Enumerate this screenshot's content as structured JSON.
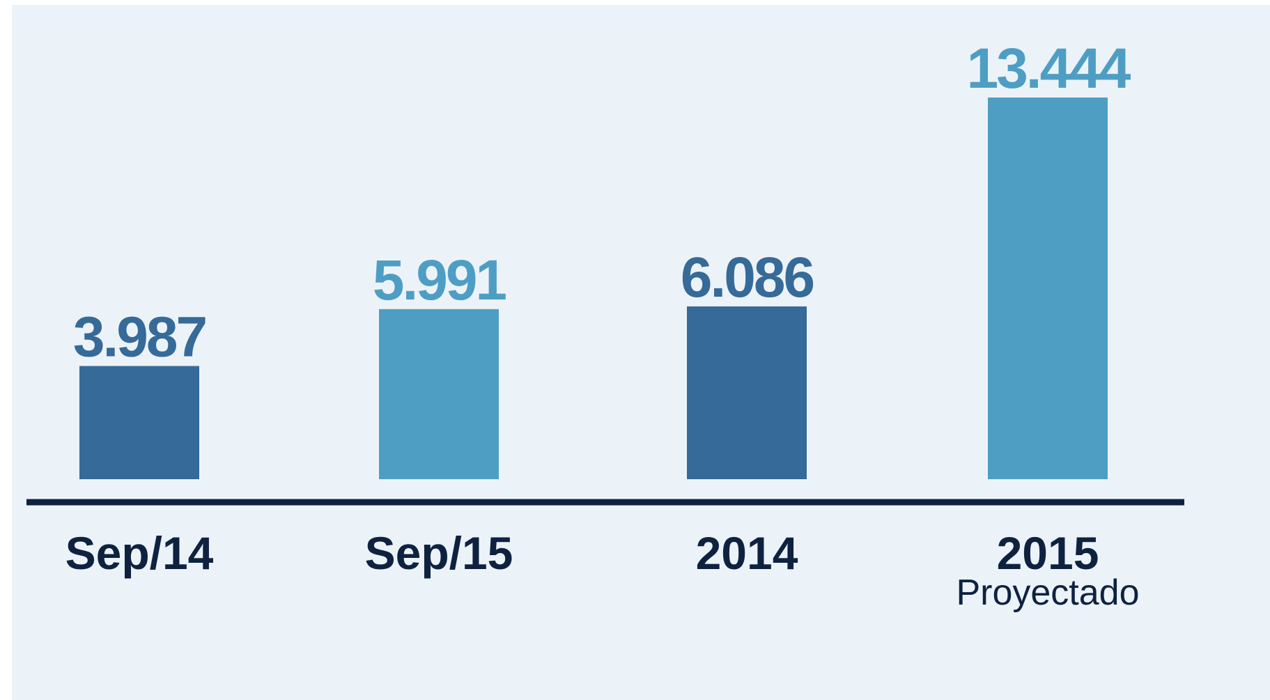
{
  "chart_data": {
    "type": "bar",
    "categories": [
      "Sep/14",
      "Sep/15",
      "2014",
      "2015"
    ],
    "values": [
      3987,
      5991,
      6086,
      13444
    ],
    "value_labels": [
      "3.987",
      "5.991",
      "6.086",
      "13.444"
    ],
    "colors": [
      "#366a98",
      "#4e9ec4",
      "#366a98",
      "#4e9ec4"
    ],
    "annotations": [
      {
        "text": "Proyectado",
        "x": "2015"
      }
    ]
  }
}
